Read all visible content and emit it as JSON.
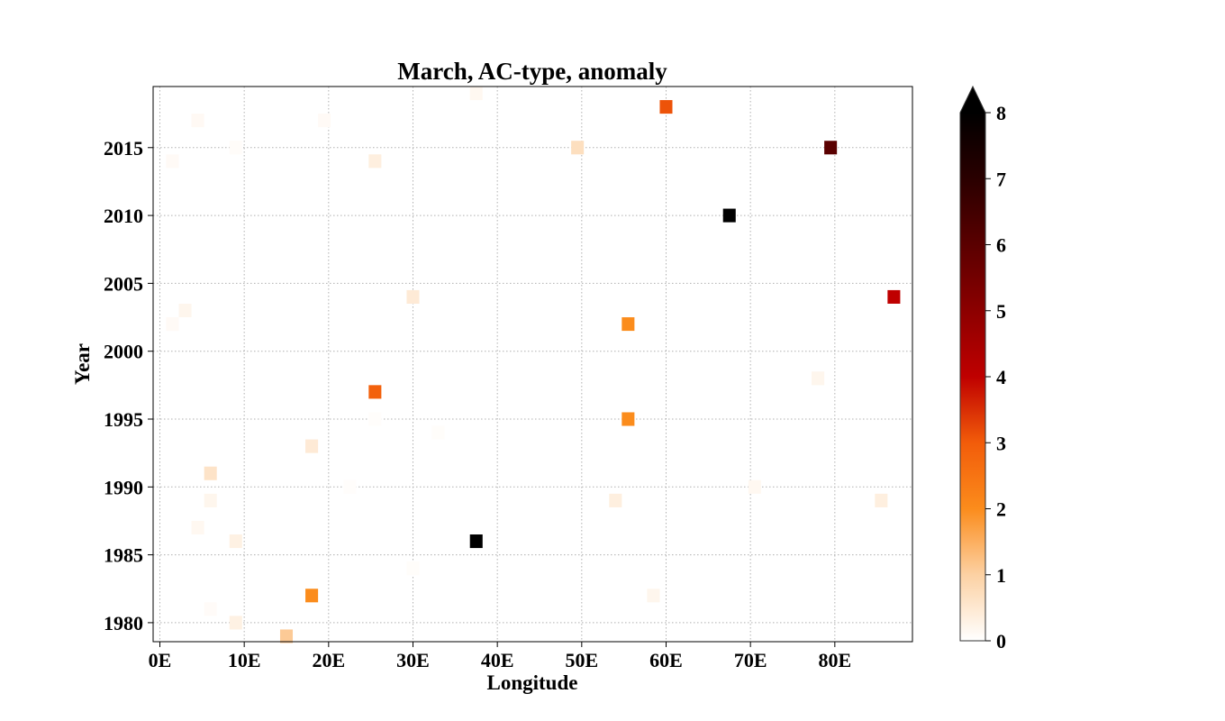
{
  "chart_data": {
    "type": "heatmap",
    "title": "March, AC-type, anomaly",
    "xlabel": "Longitude",
    "ylabel": "Year",
    "xlim": [
      -0.8,
      89.2
    ],
    "ylim": [
      1978.6,
      2019.5
    ],
    "xticks": [
      {
        "value": 0,
        "label": "0E"
      },
      {
        "value": 10,
        "label": "10E"
      },
      {
        "value": 20,
        "label": "20E"
      },
      {
        "value": 30,
        "label": "30E"
      },
      {
        "value": 40,
        "label": "40E"
      },
      {
        "value": 50,
        "label": "50E"
      },
      {
        "value": 60,
        "label": "60E"
      },
      {
        "value": 70,
        "label": "70E"
      },
      {
        "value": 80,
        "label": "80E"
      }
    ],
    "yticks": [
      {
        "value": 1980,
        "label": "1980"
      },
      {
        "value": 1985,
        "label": "1985"
      },
      {
        "value": 1990,
        "label": "1990"
      },
      {
        "value": 1995,
        "label": "1995"
      },
      {
        "value": 2000,
        "label": "2000"
      },
      {
        "value": 2005,
        "label": "2005"
      },
      {
        "value": 2010,
        "label": "2010"
      },
      {
        "value": 2015,
        "label": "2015"
      }
    ],
    "grid": true,
    "colormap": "gist_heat_r",
    "colorbar": {
      "min": 0,
      "max": 8,
      "extend": "max",
      "ticks": [
        "0",
        "1",
        "2",
        "3",
        "4",
        "5",
        "6",
        "7",
        "8"
      ],
      "extend_color": "#000000"
    },
    "cell_width_deg": 1.5,
    "cell_height_years": 1,
    "points": [
      {
        "lon": 37.5,
        "year": 2019,
        "value": 0.15
      },
      {
        "lon": 60.0,
        "year": 2018,
        "value": 3.1
      },
      {
        "lon": 4.5,
        "year": 2017,
        "value": 0.12
      },
      {
        "lon": 19.5,
        "year": 2017,
        "value": 0.1
      },
      {
        "lon": 9.0,
        "year": 2015,
        "value": 0.06
      },
      {
        "lon": 49.5,
        "year": 2015,
        "value": 0.7
      },
      {
        "lon": 79.5,
        "year": 2015,
        "value": 6.0
      },
      {
        "lon": 1.5,
        "year": 2014,
        "value": 0.1
      },
      {
        "lon": 25.5,
        "year": 2014,
        "value": 0.35
      },
      {
        "lon": 67.5,
        "year": 2010,
        "value": 8.2
      },
      {
        "lon": 30.0,
        "year": 2004,
        "value": 0.45
      },
      {
        "lon": 87.0,
        "year": 2004,
        "value": 4.0
      },
      {
        "lon": 3.0,
        "year": 2003,
        "value": 0.2
      },
      {
        "lon": 1.5,
        "year": 2002,
        "value": 0.1
      },
      {
        "lon": 55.5,
        "year": 2002,
        "value": 2.0
      },
      {
        "lon": 78.0,
        "year": 1998,
        "value": 0.2
      },
      {
        "lon": 25.5,
        "year": 1997,
        "value": 2.9
      },
      {
        "lon": 25.5,
        "year": 1995,
        "value": 0.04
      },
      {
        "lon": 55.5,
        "year": 1995,
        "value": 2.0
      },
      {
        "lon": 33.0,
        "year": 1994,
        "value": 0.05
      },
      {
        "lon": 18.0,
        "year": 1993,
        "value": 0.45
      },
      {
        "lon": 6.0,
        "year": 1991,
        "value": 0.6
      },
      {
        "lon": 22.5,
        "year": 1990,
        "value": 0.04
      },
      {
        "lon": 70.5,
        "year": 1990,
        "value": 0.15
      },
      {
        "lon": 6.0,
        "year": 1989,
        "value": 0.2
      },
      {
        "lon": 54.0,
        "year": 1989,
        "value": 0.35
      },
      {
        "lon": 85.5,
        "year": 1989,
        "value": 0.35
      },
      {
        "lon": 4.5,
        "year": 1987,
        "value": 0.15
      },
      {
        "lon": 9.0,
        "year": 1986,
        "value": 0.3
      },
      {
        "lon": 37.5,
        "year": 1986,
        "value": 8.5
      },
      {
        "lon": 30.0,
        "year": 1984,
        "value": 0.05
      },
      {
        "lon": 18.0,
        "year": 1982,
        "value": 2.0
      },
      {
        "lon": 58.5,
        "year": 1982,
        "value": 0.2
      },
      {
        "lon": 6.0,
        "year": 1981,
        "value": 0.08
      },
      {
        "lon": 9.0,
        "year": 1980,
        "value": 0.3
      },
      {
        "lon": 15.0,
        "year": 1979,
        "value": 1.1
      }
    ]
  }
}
